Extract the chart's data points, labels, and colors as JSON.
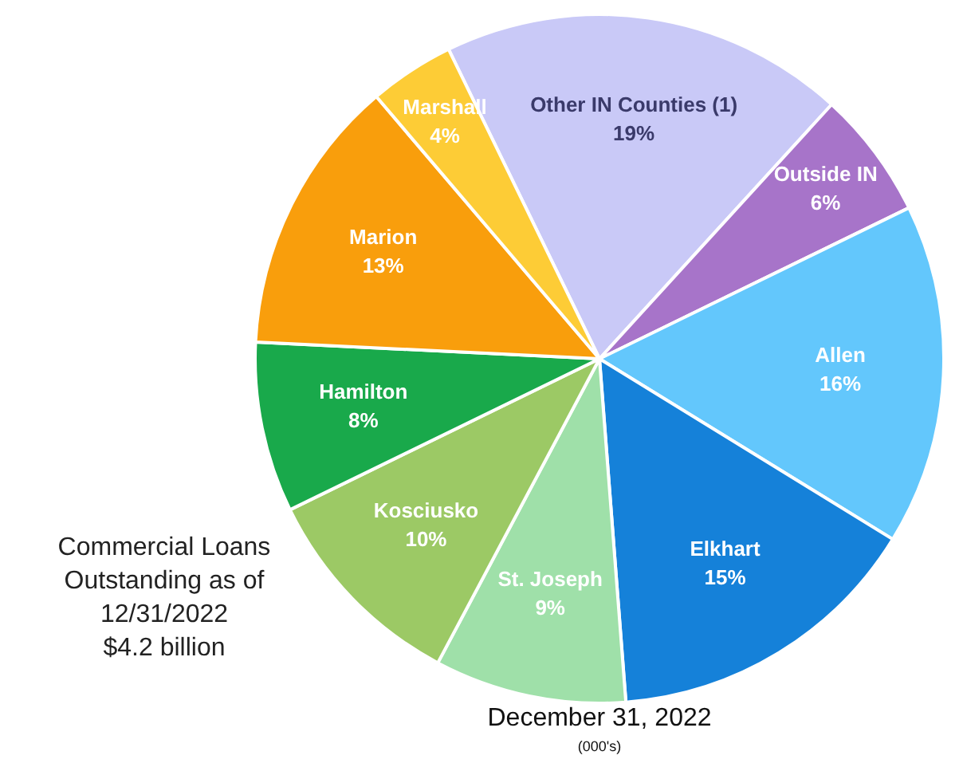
{
  "chart_data": {
    "type": "pie",
    "title": "December 31, 2022",
    "subtitle": "(000's)",
    "annotations": [
      "Commercial Loans\nOutstanding as of\n12/31/2022\n$4.2 billion"
    ],
    "categories": [
      "Other IN Counties (1)",
      "Outside IN",
      "Allen",
      "Elkhart",
      "St. Joseph",
      "Kosciusko",
      "Hamilton",
      "Marion",
      "Marshall"
    ],
    "values": [
      19,
      6,
      16,
      15,
      9,
      10,
      8,
      13,
      4
    ],
    "colors": [
      "#c9c9f7",
      "#a774c9",
      "#63c7fc",
      "#1581d9",
      "#9fe0a9",
      "#9cc965",
      "#19a94b",
      "#f99e0c",
      "#fdcc36"
    ],
    "value_labels": [
      "19%",
      "6%",
      "16%",
      "15%",
      "9%",
      "10%",
      "8%",
      "13%",
      "4%"
    ],
    "legend": false
  }
}
